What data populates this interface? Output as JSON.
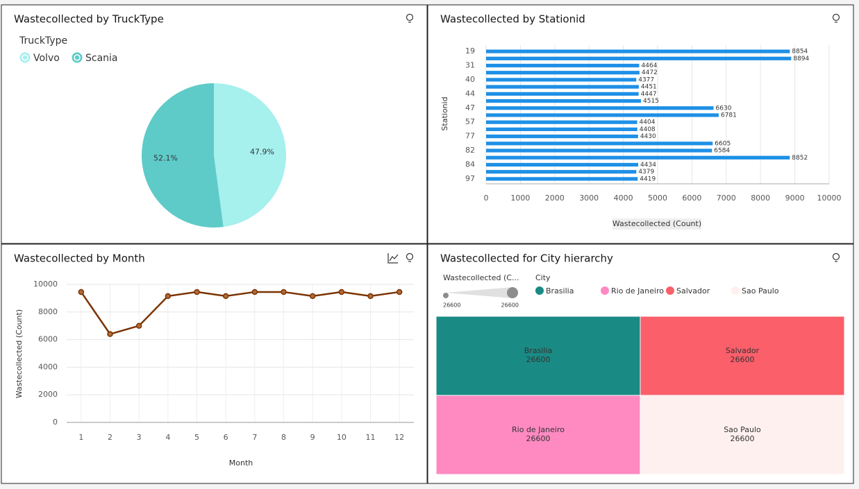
{
  "chart_data": [
    {
      "type": "pie",
      "title": "Wastecollected by TruckType",
      "legend_title": "TruckType",
      "categories": [
        "Volvo",
        "Scania"
      ],
      "values": [
        47.9,
        52.1
      ],
      "value_labels": [
        "47.9%",
        "52.1%"
      ],
      "colors": [
        "#a6f0ee",
        "#5ecbc8"
      ]
    },
    {
      "type": "hbar",
      "title": "Wastecollected by Stationid",
      "xlabel": "Wastecollected (Count)",
      "ylabel": "Stationid",
      "categories": [
        "19",
        null,
        "31",
        null,
        "40",
        null,
        "44",
        null,
        "47",
        null,
        "57",
        null,
        "77",
        null,
        "82",
        null,
        "84",
        null,
        "97"
      ],
      "values": [
        8854,
        8894,
        4464,
        4472,
        4377,
        4451,
        4447,
        4515,
        6630,
        6781,
        4404,
        4408,
        4430,
        6605,
        6584,
        8852,
        4434,
        4379,
        4419
      ],
      "color": "#1e90e6",
      "xlim": [
        0,
        10000
      ],
      "xticks": [
        0,
        1000,
        2000,
        3000,
        4000,
        5000,
        6000,
        7000,
        8000,
        9000,
        10000
      ],
      "grid": true
    },
    {
      "type": "line",
      "title": "Wastecollected by Month",
      "xlabel": "Month",
      "ylabel": "Wastecollected (Count)",
      "categories": [
        "1",
        "2",
        "3",
        "4",
        "5",
        "6",
        "7",
        "8",
        "9",
        "10",
        "11",
        "12"
      ],
      "values": [
        9450,
        6400,
        7000,
        9150,
        9450,
        9150,
        9450,
        9450,
        9150,
        9450,
        9150,
        9450
      ],
      "color": "#7a3300",
      "ylim": [
        0,
        10000
      ],
      "yticks": [
        0,
        2000,
        4000,
        6000,
        8000,
        10000
      ],
      "grid": true
    },
    {
      "type": "treemap",
      "title": "Wastecollected for City hierarchy",
      "legend_title": "City",
      "size_legend": {
        "title": "Wastecollected (C...",
        "min": 26600,
        "max": 26600
      },
      "categories": [
        "Brasilia",
        "Rio de Janeiro",
        "Salvador",
        "Sao Paulo"
      ],
      "values": [
        26600,
        26600,
        26600,
        26600
      ],
      "colors": [
        "#1a8a84",
        "#ff8ac2",
        "#fa5f6a",
        "#fff0f0"
      ]
    }
  ]
}
